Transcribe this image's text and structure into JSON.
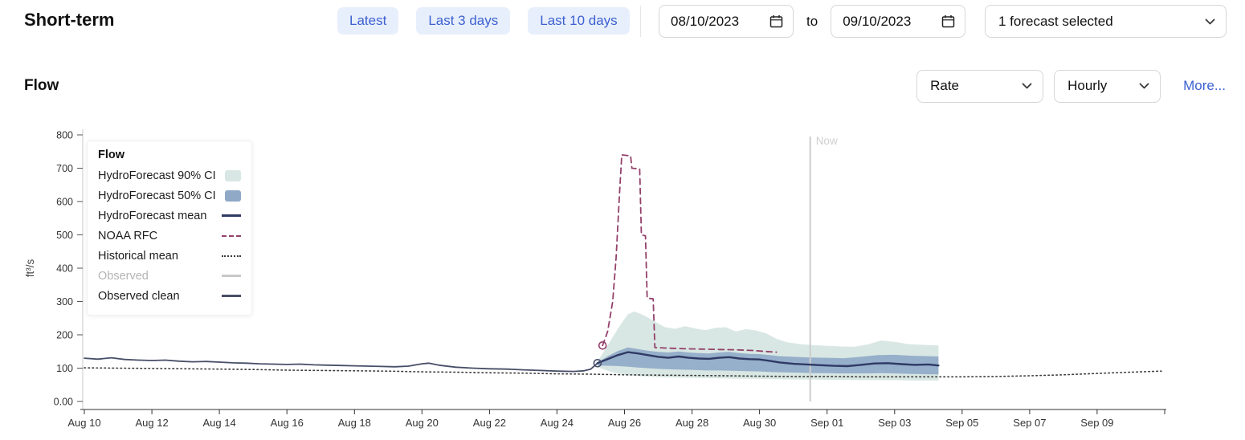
{
  "header": {
    "title": "Short-term",
    "range_buttons": [
      "Latest",
      "Last 3 days",
      "Last 10 days"
    ],
    "date_from": "08/10/2023",
    "date_to_label": "to",
    "date_to": "09/10/2023",
    "forecast_selector": "1 forecast selected"
  },
  "section": {
    "title": "Flow",
    "rate_select": "Rate",
    "interval_select": "Hourly",
    "more_link": "More..."
  },
  "legend": {
    "title": "Flow",
    "items": [
      {
        "label": "HydroForecast 90% CI",
        "swatch": "area",
        "color": "#d8e7e3"
      },
      {
        "label": "HydroForecast 50% CI",
        "swatch": "area",
        "color": "#8fa9c7"
      },
      {
        "label": "HydroForecast mean",
        "swatch": "line",
        "color": "#2f3a65"
      },
      {
        "label": "NOAA RFC",
        "swatch": "dashed",
        "color": "#93406b"
      },
      {
        "label": "Historical mean",
        "swatch": "dotted",
        "color": "#3a3a3a"
      },
      {
        "label": "Observed",
        "swatch": "line",
        "color": "#c9c9c9",
        "muted": true
      },
      {
        "label": "Observed clean",
        "swatch": "line",
        "color": "#474e68"
      }
    ]
  },
  "chart_data": {
    "type": "line",
    "title": "Flow",
    "ylabel": "ft³/s",
    "xlim": [
      0,
      32
    ],
    "ylim": [
      0,
      800
    ],
    "x_axis_note": "days since Aug 10, 2023",
    "y_ticks": [
      {
        "v": 0,
        "label": "0.00"
      },
      {
        "v": 100,
        "label": "100"
      },
      {
        "v": 200,
        "label": "200"
      },
      {
        "v": 300,
        "label": "300"
      },
      {
        "v": 400,
        "label": "400"
      },
      {
        "v": 500,
        "label": "500"
      },
      {
        "v": 600,
        "label": "600"
      },
      {
        "v": 700,
        "label": "700"
      },
      {
        "v": 800,
        "label": "800"
      }
    ],
    "x_ticks": [
      {
        "d": 0,
        "label": "Aug 10"
      },
      {
        "d": 2,
        "label": "Aug 12"
      },
      {
        "d": 4,
        "label": "Aug 14"
      },
      {
        "d": 6,
        "label": "Aug 16"
      },
      {
        "d": 8,
        "label": "Aug 18"
      },
      {
        "d": 10,
        "label": "Aug 20"
      },
      {
        "d": 12,
        "label": "Aug 22"
      },
      {
        "d": 14,
        "label": "Aug 24"
      },
      {
        "d": 16,
        "label": "Aug 26"
      },
      {
        "d": 18,
        "label": "Aug 28"
      },
      {
        "d": 20,
        "label": "Aug 30"
      },
      {
        "d": 22,
        "label": "Sep 01"
      },
      {
        "d": 24,
        "label": "Sep 03"
      },
      {
        "d": 26,
        "label": "Sep 05"
      },
      {
        "d": 28,
        "label": "Sep 07"
      },
      {
        "d": 30,
        "label": "Sep 09"
      }
    ],
    "now_line": {
      "d": 21.5,
      "label": "Now",
      "color": "#cccccc"
    },
    "series": {
      "ci90": {
        "name": "HydroForecast 90% CI",
        "color": "#d8e7e3",
        "upper": [
          [
            15.2,
            120
          ],
          [
            15.5,
            168
          ],
          [
            15.8,
            218
          ],
          [
            16.1,
            262
          ],
          [
            16.3,
            270
          ],
          [
            16.6,
            257
          ],
          [
            16.9,
            240
          ],
          [
            17.2,
            223
          ],
          [
            17.5,
            218
          ],
          [
            17.8,
            226
          ],
          [
            18.1,
            219
          ],
          [
            18.4,
            214
          ],
          [
            18.7,
            221
          ],
          [
            19.0,
            223
          ],
          [
            19.3,
            210
          ],
          [
            19.6,
            217
          ],
          [
            19.9,
            213
          ],
          [
            20.2,
            204
          ],
          [
            20.5,
            188
          ],
          [
            20.8,
            178
          ],
          [
            21.2,
            172
          ],
          [
            21.6,
            169
          ],
          [
            22.0,
            167
          ],
          [
            22.4,
            165
          ],
          [
            22.8,
            164
          ],
          [
            23.2,
            171
          ],
          [
            23.6,
            183
          ],
          [
            24.0,
            179
          ],
          [
            24.4,
            172
          ],
          [
            24.8,
            170
          ],
          [
            25.3,
            168
          ]
        ],
        "lower": [
          [
            15.2,
            103
          ],
          [
            15.5,
            92
          ],
          [
            15.8,
            84
          ],
          [
            16.1,
            79
          ],
          [
            16.5,
            76
          ],
          [
            17.0,
            73
          ],
          [
            17.5,
            72
          ],
          [
            18.0,
            71
          ],
          [
            18.5,
            70
          ],
          [
            19.0,
            69
          ],
          [
            19.5,
            68
          ],
          [
            20.0,
            68
          ],
          [
            20.5,
            67
          ],
          [
            21.0,
            66
          ],
          [
            21.5,
            66
          ],
          [
            22.0,
            65
          ],
          [
            22.5,
            65
          ],
          [
            23.0,
            64
          ],
          [
            23.5,
            64
          ],
          [
            24.0,
            64
          ],
          [
            24.5,
            63
          ],
          [
            25.3,
            63
          ]
        ]
      },
      "ci50": {
        "name": "HydroForecast 50% CI",
        "color": "#8fa9c7",
        "upper": [
          [
            15.2,
            117
          ],
          [
            15.5,
            136
          ],
          [
            15.8,
            151
          ],
          [
            16.1,
            162
          ],
          [
            16.4,
            157
          ],
          [
            16.7,
            152
          ],
          [
            17.0,
            149
          ],
          [
            17.3,
            147
          ],
          [
            17.6,
            150
          ],
          [
            17.9,
            147
          ],
          [
            18.2,
            145
          ],
          [
            18.5,
            144
          ],
          [
            18.8,
            147
          ],
          [
            19.1,
            149
          ],
          [
            19.4,
            145
          ],
          [
            19.7,
            143
          ],
          [
            20.0,
            142
          ],
          [
            20.3,
            139
          ],
          [
            20.6,
            136
          ],
          [
            21.0,
            134
          ],
          [
            21.5,
            132
          ],
          [
            22.0,
            131
          ],
          [
            22.5,
            130
          ],
          [
            23.0,
            134
          ],
          [
            23.5,
            139
          ],
          [
            24.0,
            140
          ],
          [
            24.5,
            137
          ],
          [
            25.0,
            136
          ],
          [
            25.3,
            135
          ]
        ],
        "lower": [
          [
            15.2,
            108
          ],
          [
            15.6,
            107
          ],
          [
            16.0,
            105
          ],
          [
            16.4,
            102
          ],
          [
            16.8,
            99
          ],
          [
            17.2,
            97
          ],
          [
            17.6,
            96
          ],
          [
            18.0,
            95
          ],
          [
            18.4,
            93
          ],
          [
            18.8,
            93
          ],
          [
            19.2,
            92
          ],
          [
            19.6,
            91
          ],
          [
            20.0,
            90
          ],
          [
            20.4,
            88
          ],
          [
            20.8,
            87
          ],
          [
            21.2,
            86
          ],
          [
            21.6,
            85
          ],
          [
            22.0,
            85
          ],
          [
            22.4,
            84
          ],
          [
            22.8,
            84
          ],
          [
            23.2,
            84
          ],
          [
            23.6,
            85
          ],
          [
            24.0,
            84
          ],
          [
            24.4,
            83
          ],
          [
            24.8,
            82
          ],
          [
            25.3,
            81
          ]
        ]
      },
      "historical_mean": {
        "name": "Historical mean",
        "color": "#3a3a3a",
        "width": 1.6,
        "dash": "1.5 3.5",
        "points": [
          [
            0,
            101
          ],
          [
            1,
            100
          ],
          [
            2,
            99
          ],
          [
            3,
            98
          ],
          [
            4,
            97
          ],
          [
            5,
            96
          ],
          [
            6,
            94
          ],
          [
            7,
            93
          ],
          [
            8,
            92
          ],
          [
            9,
            91
          ],
          [
            10,
            89
          ],
          [
            11,
            88
          ],
          [
            12,
            86
          ],
          [
            13,
            85
          ],
          [
            14,
            83
          ],
          [
            15,
            82
          ],
          [
            16,
            80
          ],
          [
            17,
            79
          ],
          [
            18,
            78
          ],
          [
            19,
            77
          ],
          [
            20,
            76
          ],
          [
            21,
            75
          ],
          [
            22,
            75
          ],
          [
            23,
            74
          ],
          [
            24,
            74
          ],
          [
            25,
            74
          ],
          [
            26,
            74
          ],
          [
            27,
            75
          ],
          [
            28,
            77
          ],
          [
            29,
            80
          ],
          [
            30,
            84
          ],
          [
            31,
            88
          ],
          [
            31.9,
            91
          ]
        ]
      },
      "noaa_rfc": {
        "name": "NOAA RFC",
        "color": "#93406b",
        "width": 1.8,
        "dash": "7 5",
        "points": [
          [
            15.35,
            168
          ],
          [
            15.5,
            210
          ],
          [
            15.65,
            300
          ],
          [
            15.75,
            430
          ],
          [
            15.85,
            620
          ],
          [
            15.92,
            740
          ],
          [
            16.18,
            737
          ],
          [
            16.22,
            700
          ],
          [
            16.45,
            698
          ],
          [
            16.5,
            500
          ],
          [
            16.62,
            497
          ],
          [
            16.67,
            310
          ],
          [
            16.85,
            308
          ],
          [
            16.9,
            162
          ],
          [
            17.3,
            160
          ],
          [
            17.8,
            158
          ],
          [
            18.3,
            157
          ],
          [
            18.8,
            156
          ],
          [
            19.3,
            155
          ],
          [
            19.8,
            153
          ],
          [
            20.2,
            150
          ],
          [
            20.5,
            148
          ]
        ]
      },
      "observed_clean": {
        "name": "Observed clean",
        "color": "#474e68",
        "width": 1.8,
        "points": [
          [
            0,
            130
          ],
          [
            0.4,
            127
          ],
          [
            0.8,
            131
          ],
          [
            1.2,
            126
          ],
          [
            1.6,
            124
          ],
          [
            2.0,
            123
          ],
          [
            2.4,
            124
          ],
          [
            2.8,
            121
          ],
          [
            3.2,
            119
          ],
          [
            3.6,
            120
          ],
          [
            4.0,
            118
          ],
          [
            4.4,
            116
          ],
          [
            4.8,
            115
          ],
          [
            5.2,
            113
          ],
          [
            5.6,
            112
          ],
          [
            6.0,
            111
          ],
          [
            6.4,
            112
          ],
          [
            6.8,
            110
          ],
          [
            7.2,
            109
          ],
          [
            7.6,
            108
          ],
          [
            8.0,
            107
          ],
          [
            8.4,
            106
          ],
          [
            8.8,
            105
          ],
          [
            9.2,
            104
          ],
          [
            9.6,
            106
          ],
          [
            10.0,
            113
          ],
          [
            10.2,
            115
          ],
          [
            10.5,
            109
          ],
          [
            11.0,
            103
          ],
          [
            11.5,
            100
          ],
          [
            12.0,
            98
          ],
          [
            12.5,
            97
          ],
          [
            13.0,
            95
          ],
          [
            13.5,
            93
          ],
          [
            14.0,
            91
          ],
          [
            14.5,
            90
          ],
          [
            14.8,
            92
          ],
          [
            15.0,
            97
          ],
          [
            15.2,
            115
          ]
        ]
      },
      "mean": {
        "name": "HydroForecast mean",
        "color": "#2f3a65",
        "width": 2.4,
        "points": [
          [
            15.2,
            115
          ],
          [
            15.5,
            127
          ],
          [
            15.8,
            139
          ],
          [
            16.1,
            148
          ],
          [
            16.4,
            144
          ],
          [
            16.7,
            139
          ],
          [
            17.0,
            134
          ],
          [
            17.3,
            131
          ],
          [
            17.6,
            135
          ],
          [
            17.9,
            131
          ],
          [
            18.2,
            129
          ],
          [
            18.5,
            128
          ],
          [
            18.8,
            131
          ],
          [
            19.1,
            133
          ],
          [
            19.4,
            129
          ],
          [
            19.7,
            127
          ],
          [
            20.0,
            126
          ],
          [
            20.3,
            122
          ],
          [
            20.6,
            117
          ],
          [
            21.0,
            113
          ],
          [
            21.4,
            111
          ],
          [
            21.8,
            109
          ],
          [
            22.2,
            107
          ],
          [
            22.6,
            106
          ],
          [
            23.0,
            110
          ],
          [
            23.4,
            114
          ],
          [
            23.8,
            115
          ],
          [
            24.2,
            112
          ],
          [
            24.6,
            110
          ],
          [
            25.0,
            111
          ],
          [
            25.3,
            108
          ]
        ]
      }
    },
    "markers": [
      {
        "d": 15.2,
        "v": 115,
        "color": "#474e68"
      },
      {
        "d": 15.35,
        "v": 168,
        "color": "#93406b"
      }
    ]
  }
}
